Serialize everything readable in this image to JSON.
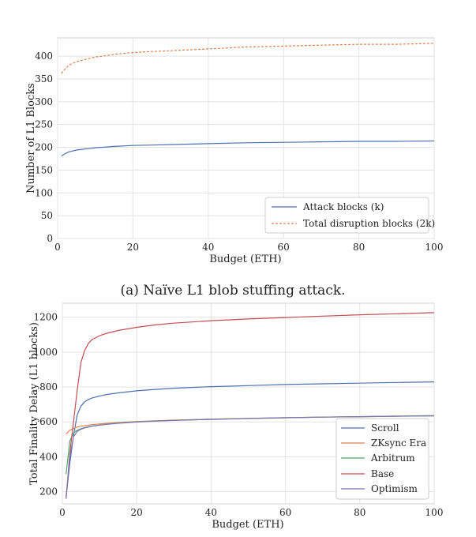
{
  "chart_data": [
    {
      "type": "line",
      "caption": "(a) Naïve L1 blob stuffing attack.",
      "xlabel": "Budget (ETH)",
      "ylabel": "Number of L1 Blocks",
      "xlim": [
        0,
        100
      ],
      "ylim": [
        0,
        440
      ],
      "xticks": [
        "0",
        "20",
        "40",
        "60",
        "80",
        "100"
      ],
      "yticks": [
        "0",
        "50",
        "100",
        "150",
        "200",
        "250",
        "300",
        "350",
        "400"
      ],
      "grid": true,
      "legend_position": "lower-right",
      "x": [
        1,
        2,
        3,
        4,
        5,
        6,
        8,
        10,
        12,
        15,
        20,
        25,
        30,
        40,
        50,
        60,
        70,
        80,
        90,
        100
      ],
      "series": [
        {
          "name": "Attack blocks (k)",
          "color": "#4c72b0",
          "style": "solid",
          "values": [
            181,
            186,
            190,
            192,
            194,
            195,
            197,
            199,
            200,
            202,
            204,
            205,
            206,
            208,
            210,
            211,
            212,
            213,
            213,
            214
          ]
        },
        {
          "name": "Total disruption blocks (2k)",
          "color": "#dd8452",
          "style": "dashed",
          "values": [
            362,
            372,
            380,
            384,
            388,
            390,
            394,
            398,
            400,
            404,
            408,
            410,
            412,
            416,
            420,
            422,
            424,
            426,
            426,
            428
          ]
        }
      ]
    },
    {
      "type": "line",
      "caption": "",
      "xlabel": "Budget (ETH)",
      "ylabel": "Total Finality Delay (L1 blocks)",
      "xlim": [
        0,
        100
      ],
      "ylim": [
        130,
        1280
      ],
      "xticks": [
        "0",
        "20",
        "40",
        "60",
        "80",
        "100"
      ],
      "yticks": [
        "200",
        "400",
        "600",
        "800",
        "1000",
        "1200"
      ],
      "grid": true,
      "legend_position": "lower-right",
      "x": [
        1,
        2,
        3,
        4,
        5,
        6,
        7,
        8,
        10,
        12,
        15,
        20,
        25,
        30,
        40,
        50,
        60,
        70,
        80,
        90,
        100
      ],
      "series": [
        {
          "name": "Scroll",
          "color": "#4c72b0",
          "values": [
            170,
            360,
            520,
            640,
            690,
            715,
            728,
            737,
            748,
            757,
            766,
            778,
            786,
            793,
            802,
            808,
            814,
            818,
            822,
            826,
            829
          ]
        },
        {
          "name": "ZKsync Era",
          "color": "#dd8452",
          "values": [
            530,
            552,
            562,
            570,
            575,
            578,
            581,
            584,
            588,
            592,
            596,
            602,
            606,
            610,
            616,
            620,
            624,
            627,
            630,
            632,
            634
          ]
        },
        {
          "name": "Arbitrum",
          "color": "#55a868",
          "values": [
            300,
            490,
            535,
            552,
            561,
            567,
            572,
            576,
            582,
            587,
            593,
            600,
            605,
            609,
            615,
            620,
            624,
            627,
            630,
            632,
            634
          ]
        },
        {
          "name": "Base",
          "color": "#c44e52",
          "values": [
            160,
            420,
            600,
            780,
            940,
            1010,
            1050,
            1072,
            1094,
            1108,
            1124,
            1142,
            1156,
            1166,
            1180,
            1190,
            1198,
            1206,
            1214,
            1220,
            1226
          ]
        },
        {
          "name": "Optimism",
          "color": "#8172b2",
          "values": [
            160,
            400,
            515,
            545,
            558,
            565,
            570,
            575,
            581,
            586,
            592,
            599,
            604,
            608,
            614,
            619,
            623,
            627,
            630,
            633,
            636
          ]
        }
      ]
    }
  ]
}
